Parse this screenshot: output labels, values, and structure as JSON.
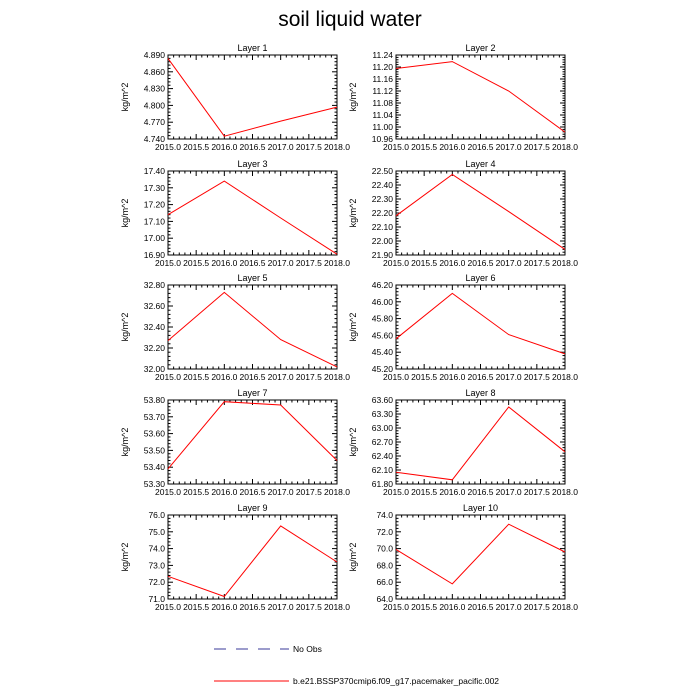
{
  "title": "soil liquid water",
  "colors": {
    "model": "#ff0000",
    "obs": "#3a3a9a",
    "axis": "#000000"
  },
  "legend": [
    {
      "label": "No Obs",
      "style": "dashed",
      "color": "#3a3a9a"
    },
    {
      "label": "b.e21.BSSP370cmip6.f09_g17.pacemaker_pacific.002",
      "style": "solid",
      "color": "#ff0000"
    }
  ],
  "chart_data": [
    {
      "type": "line",
      "title": "Layer 1",
      "ylabel": "kg/m^2",
      "x": [
        2015.0,
        2016.0,
        2017.0,
        2018.0
      ],
      "xlim": [
        2015.0,
        2018.0
      ],
      "xticks": [
        "2015.0",
        "2015.5",
        "2016.0",
        "2016.5",
        "2017.0",
        "2017.5",
        "2018.0"
      ],
      "ylim": [
        4.74,
        4.89
      ],
      "yticks": [
        "4.740",
        "4.770",
        "4.800",
        "4.830",
        "4.860",
        "4.890"
      ],
      "series": [
        {
          "values": [
            4.884,
            4.745,
            4.772,
            4.797
          ]
        }
      ]
    },
    {
      "type": "line",
      "title": "Layer 2",
      "ylabel": "kg/m^2",
      "x": [
        2015.0,
        2016.0,
        2017.0,
        2018.0
      ],
      "xlim": [
        2015.0,
        2018.0
      ],
      "xticks": [
        "2015.0",
        "2015.5",
        "2016.0",
        "2016.5",
        "2017.0",
        "2017.5",
        "2018.0"
      ],
      "ylim": [
        10.96,
        11.24
      ],
      "yticks": [
        "10.96",
        "11.00",
        "11.04",
        "11.08",
        "11.12",
        "11.16",
        "11.20",
        "11.24"
      ],
      "series": [
        {
          "values": [
            11.195,
            11.218,
            11.12,
            10.983
          ]
        }
      ]
    },
    {
      "type": "line",
      "title": "Layer 3",
      "ylabel": "kg/m^2",
      "x": [
        2015.0,
        2016.0,
        2017.0,
        2018.0
      ],
      "xlim": [
        2015.0,
        2018.0
      ],
      "xticks": [
        "2015.0",
        "2015.5",
        "2016.0",
        "2016.5",
        "2017.0",
        "2017.5",
        "2018.0"
      ],
      "ylim": [
        16.9,
        17.4
      ],
      "yticks": [
        "16.90",
        "17.00",
        "17.10",
        "17.20",
        "17.30",
        "17.40"
      ],
      "series": [
        {
          "values": [
            17.14,
            17.34,
            17.12,
            16.905
          ]
        }
      ]
    },
    {
      "type": "line",
      "title": "Layer 4",
      "ylabel": "kg/m^2",
      "x": [
        2015.0,
        2016.0,
        2017.0,
        2018.0
      ],
      "xlim": [
        2015.0,
        2018.0
      ],
      "xticks": [
        "2015.0",
        "2015.5",
        "2016.0",
        "2016.5",
        "2017.0",
        "2017.5",
        "2018.0"
      ],
      "ylim": [
        21.9,
        22.5
      ],
      "yticks": [
        "21.90",
        "22.00",
        "22.10",
        "22.20",
        "22.30",
        "22.40",
        "22.50"
      ],
      "series": [
        {
          "values": [
            22.18,
            22.475,
            22.21,
            21.94
          ]
        }
      ]
    },
    {
      "type": "line",
      "title": "Layer 5",
      "ylabel": "kg/m^2",
      "x": [
        2015.0,
        2016.0,
        2017.0,
        2018.0
      ],
      "xlim": [
        2015.0,
        2018.0
      ],
      "xticks": [
        "2015.0",
        "2015.5",
        "2016.0",
        "2016.5",
        "2017.0",
        "2017.5",
        "2018.0"
      ],
      "ylim": [
        32.0,
        32.8
      ],
      "yticks": [
        "32.00",
        "32.20",
        "32.40",
        "32.60",
        "32.80"
      ],
      "series": [
        {
          "values": [
            32.27,
            32.73,
            32.28,
            32.02
          ]
        }
      ]
    },
    {
      "type": "line",
      "title": "Layer 6",
      "ylabel": "kg/m^2",
      "x": [
        2015.0,
        2016.0,
        2017.0,
        2018.0
      ],
      "xlim": [
        2015.0,
        2018.0
      ],
      "xticks": [
        "2015.0",
        "2015.5",
        "2016.0",
        "2016.5",
        "2017.0",
        "2017.5",
        "2018.0"
      ],
      "ylim": [
        45.2,
        46.2
      ],
      "yticks": [
        "45.20",
        "45.40",
        "45.60",
        "45.80",
        "46.00",
        "46.20"
      ],
      "series": [
        {
          "values": [
            45.56,
            46.1,
            45.61,
            45.38
          ]
        }
      ]
    },
    {
      "type": "line",
      "title": "Layer 7",
      "ylabel": "kg/m^2",
      "x": [
        2015.0,
        2016.0,
        2017.0,
        2018.0
      ],
      "xlim": [
        2015.0,
        2018.0
      ],
      "xticks": [
        "2015.0",
        "2015.5",
        "2016.0",
        "2016.5",
        "2017.0",
        "2017.5",
        "2018.0"
      ],
      "ylim": [
        53.3,
        53.8
      ],
      "yticks": [
        "53.30",
        "53.40",
        "53.50",
        "53.60",
        "53.70",
        "53.80"
      ],
      "series": [
        {
          "values": [
            53.39,
            53.79,
            53.77,
            53.44
          ]
        }
      ]
    },
    {
      "type": "line",
      "title": "Layer 8",
      "ylabel": "kg/m^2",
      "x": [
        2015.0,
        2016.0,
        2017.0,
        2018.0
      ],
      "xlim": [
        2015.0,
        2018.0
      ],
      "xticks": [
        "2015.0",
        "2015.5",
        "2016.0",
        "2016.5",
        "2017.0",
        "2017.5",
        "2018.0"
      ],
      "ylim": [
        61.8,
        63.6
      ],
      "yticks": [
        "61.80",
        "62.10",
        "62.40",
        "62.70",
        "63.00",
        "63.30",
        "63.60"
      ],
      "series": [
        {
          "values": [
            62.05,
            61.89,
            63.45,
            62.49
          ]
        }
      ]
    },
    {
      "type": "line",
      "title": "Layer 9",
      "ylabel": "kg/m^2",
      "x": [
        2015.0,
        2016.0,
        2017.0,
        2018.0
      ],
      "xlim": [
        2015.0,
        2018.0
      ],
      "xticks": [
        "2015.0",
        "2015.5",
        "2016.0",
        "2016.5",
        "2017.0",
        "2017.5",
        "2018.0"
      ],
      "ylim": [
        71.0,
        76.0
      ],
      "yticks": [
        "71.0",
        "72.0",
        "73.0",
        "74.0",
        "75.0",
        "76.0"
      ],
      "series": [
        {
          "values": [
            72.35,
            71.15,
            75.35,
            73.2
          ]
        }
      ]
    },
    {
      "type": "line",
      "title": "Layer 10",
      "ylabel": "kg/m^2",
      "x": [
        2015.0,
        2016.0,
        2017.0,
        2018.0
      ],
      "xlim": [
        2015.0,
        2018.0
      ],
      "xticks": [
        "2015.0",
        "2015.5",
        "2016.0",
        "2016.5",
        "2017.0",
        "2017.5",
        "2018.0"
      ],
      "ylim": [
        64.0,
        74.0
      ],
      "yticks": [
        "64.0",
        "66.0",
        "68.0",
        "70.0",
        "72.0",
        "74.0"
      ],
      "series": [
        {
          "values": [
            69.9,
            65.8,
            72.9,
            69.6
          ]
        }
      ]
    }
  ]
}
